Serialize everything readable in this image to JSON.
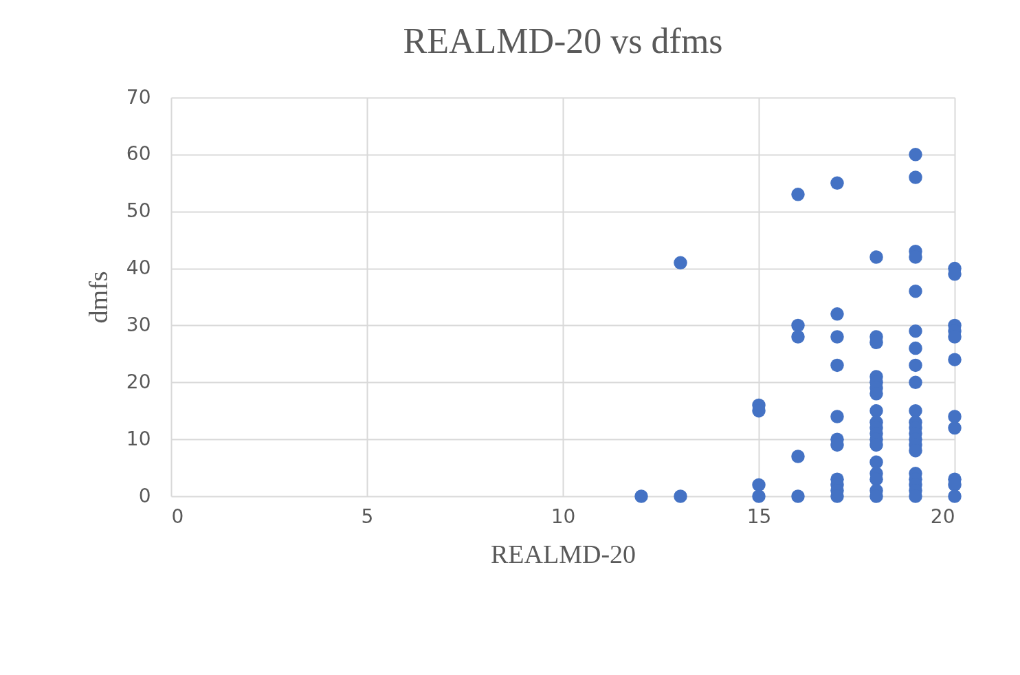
{
  "chart_data": {
    "type": "scatter",
    "title": "REALMD-20 vs dfms",
    "xlabel": "REALMD-20",
    "ylabel": "dmfs",
    "x": [
      12,
      13,
      13,
      15,
      15,
      15,
      15,
      16,
      16,
      16,
      16,
      16,
      17,
      17,
      17,
      17,
      17,
      17,
      17,
      17,
      17,
      17,
      17,
      18,
      18,
      18,
      18,
      18,
      18,
      18,
      18,
      18,
      18,
      18,
      18,
      18,
      18,
      18,
      18,
      18,
      18,
      19,
      19,
      19,
      19,
      19,
      19,
      19,
      19,
      19,
      19,
      19,
      19,
      19,
      19,
      19,
      19,
      19,
      19,
      19,
      19,
      19,
      20,
      20,
      20,
      20,
      20,
      20,
      20,
      20,
      20,
      20,
      20
    ],
    "values": [
      0,
      41,
      0,
      16,
      15,
      2,
      0,
      53,
      30,
      28,
      7,
      0,
      55,
      32,
      28,
      23,
      14,
      10,
      9,
      3,
      2,
      1,
      0,
      42,
      28,
      27,
      21,
      20,
      19,
      18,
      15,
      13,
      12,
      11,
      10,
      9,
      6,
      4,
      3,
      1,
      0,
      60,
      56,
      43,
      42,
      36,
      29,
      26,
      23,
      20,
      15,
      13,
      12,
      11,
      10,
      9,
      8,
      4,
      3,
      2,
      1,
      0,
      40,
      39,
      30,
      29,
      28,
      24,
      14,
      12,
      3,
      2,
      0
    ],
    "color": "#4472c4",
    "marker": "circle",
    "grid": true,
    "xlim": [
      0,
      20
    ],
    "xticks": [
      0,
      5,
      10,
      15,
      20
    ],
    "ylim": [
      0,
      70
    ],
    "yticks": [
      0,
      10,
      20,
      30,
      40,
      50,
      60,
      70
    ]
  }
}
